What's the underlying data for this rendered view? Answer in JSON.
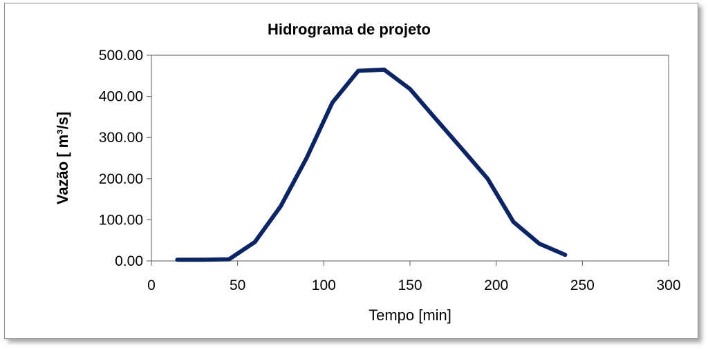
{
  "chart_data": {
    "type": "line",
    "title": "Hidrograma de projeto",
    "xlabel": "Tempo [min]",
    "ylabel": "Vazão [ m³/s]",
    "xlim": [
      0,
      300
    ],
    "ylim": [
      0,
      500
    ],
    "xticks": [
      "0",
      "50",
      "100",
      "150",
      "200",
      "250",
      "300"
    ],
    "yticks": [
      "0.00",
      "100.00",
      "200.00",
      "300.00",
      "400.00",
      "500.00"
    ],
    "grid": false,
    "legend": "none",
    "line_color": "#0b2463",
    "series": [
      {
        "x": [
          15,
          30,
          45,
          60,
          75,
          90,
          105,
          120,
          135,
          150,
          165,
          180,
          195,
          210,
          225,
          240
        ],
        "y": [
          3,
          3,
          4,
          46,
          133,
          250,
          385,
          462,
          465,
          418,
          345,
          273,
          200,
          95,
          42,
          15
        ]
      }
    ]
  }
}
